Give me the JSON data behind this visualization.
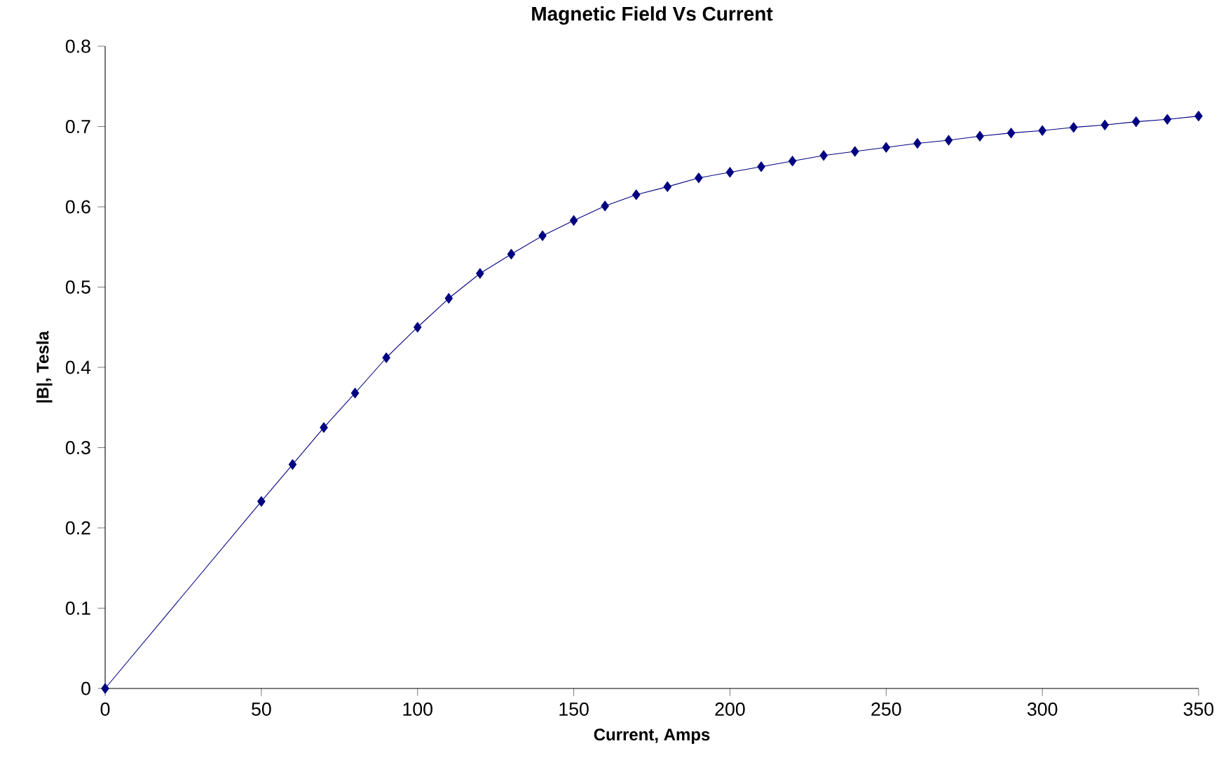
{
  "chart_data": {
    "type": "line",
    "title": "Magnetic Field Vs Current",
    "xlabel": "Current, Amps",
    "ylabel": "|B|, Tesla",
    "x": [
      0,
      50,
      60,
      70,
      80,
      90,
      100,
      110,
      120,
      130,
      140,
      150,
      160,
      170,
      180,
      190,
      200,
      210,
      220,
      230,
      240,
      250,
      260,
      270,
      280,
      290,
      300,
      310,
      320,
      330,
      340,
      350
    ],
    "series": [
      {
        "color": "#000080",
        "values": [
          0,
          0.233,
          0.279,
          0.325,
          0.368,
          0.412,
          0.45,
          0.486,
          0.517,
          0.541,
          0.564,
          0.583,
          0.601,
          0.615,
          0.625,
          0.636,
          0.643,
          0.65,
          0.657,
          0.664,
          0.669,
          0.674,
          0.679,
          0.683,
          0.688,
          0.692,
          0.695,
          0.699,
          0.702,
          0.706,
          0.709,
          0.713
        ]
      }
    ],
    "xlim": [
      0,
      350
    ],
    "ylim": [
      0,
      0.8
    ],
    "xticks": [
      0,
      50,
      100,
      150,
      200,
      250,
      300,
      350
    ],
    "yticks": [
      0,
      0.1,
      0.2,
      0.3,
      0.4,
      0.5,
      0.6,
      0.7,
      0.8
    ],
    "grid": false,
    "marker": "diamond",
    "line_style": "solid"
  }
}
